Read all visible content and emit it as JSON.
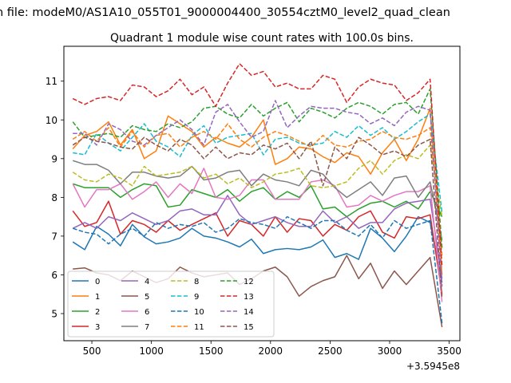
{
  "figure": {
    "suptitle": "n file: modeM0/AS1A10_055T01_9000004400_30554cztM0_level2_quad_clean",
    "title": "Quadrant 1 module wise count rates with 100.0s bins.",
    "offset_label": "+3.5945e8"
  },
  "chart_data": {
    "type": "line",
    "title": "Quadrant 1 module wise count rates with 100.0s bins.",
    "xlabel": "",
    "ylabel": "",
    "x_offset": 359450000,
    "xlim": [
      265,
      3590
    ],
    "ylim": [
      4.3,
      11.9
    ],
    "xticks": [
      500,
      1000,
      1500,
      2000,
      2500,
      3000,
      3500
    ],
    "xtick_labels": [
      "500",
      "1000",
      "1500",
      "2000",
      "2500",
      "3000",
      "3500"
    ],
    "yticks": [
      5,
      6,
      7,
      8,
      9,
      10,
      11
    ],
    "ytick_labels": [
      "5",
      "6",
      "7",
      "8",
      "9",
      "10",
      "11"
    ],
    "grid": false,
    "legend_position": "lower-left",
    "legend_columns": 4,
    "x": [
      340,
      440,
      540,
      640,
      740,
      840,
      940,
      1040,
      1140,
      1240,
      1340,
      1440,
      1540,
      1640,
      1740,
      1840,
      1940,
      2040,
      2140,
      2240,
      2340,
      2440,
      2540,
      2640,
      2740,
      2840,
      2940,
      3040,
      3140,
      3240,
      3340,
      3440
    ],
    "series": [
      {
        "name": "0",
        "color": "#1f77b4",
        "dash": "solid",
        "values": [
          6.85,
          6.65,
          7.25,
          7.05,
          6.75,
          7.3,
          6.98,
          6.8,
          6.85,
          6.95,
          7.2,
          7.0,
          6.95,
          6.85,
          6.72,
          6.92,
          6.55,
          6.65,
          6.68,
          6.65,
          6.72,
          6.9,
          6.45,
          6.55,
          6.4,
          7.2,
          6.95,
          6.6,
          7.0,
          7.5,
          7.35,
          5.8
        ]
      },
      {
        "name": "1",
        "color": "#ff7f0e",
        "dash": "solid",
        "values": [
          9.25,
          9.6,
          9.7,
          9.95,
          9.35,
          9.75,
          9.0,
          9.2,
          10.1,
          9.9,
          9.7,
          9.3,
          9.55,
          9.4,
          9.3,
          9.55,
          10.0,
          8.85,
          9.0,
          9.3,
          9.25,
          9.05,
          8.9,
          9.15,
          9.05,
          8.6,
          9.15,
          9.5,
          8.95,
          9.5,
          10.3,
          6.0
        ]
      },
      {
        "name": "2",
        "color": "#2ca02c",
        "dash": "solid",
        "values": [
          8.35,
          8.25,
          8.25,
          8.25,
          8.0,
          8.2,
          8.35,
          8.3,
          7.75,
          7.8,
          8.2,
          8.1,
          8.0,
          8.2,
          7.9,
          8.15,
          8.25,
          7.95,
          8.15,
          8.0,
          8.3,
          7.7,
          7.75,
          7.5,
          7.7,
          7.85,
          7.9,
          7.75,
          7.9,
          7.7,
          8.15,
          7.5
        ]
      },
      {
        "name": "3",
        "color": "#d62728",
        "dash": "solid",
        "values": [
          7.65,
          7.25,
          7.35,
          7.9,
          7.05,
          7.4,
          7.3,
          7.1,
          7.4,
          7.15,
          7.3,
          7.45,
          7.6,
          7.0,
          7.4,
          7.3,
          7.0,
          7.5,
          7.1,
          7.45,
          7.4,
          7.0,
          7.3,
          7.15,
          7.5,
          7.65,
          7.1,
          6.95,
          7.5,
          7.45,
          7.55,
          5.5
        ]
      },
      {
        "name": "4",
        "color": "#9467bd",
        "dash": "solid",
        "values": [
          7.2,
          7.35,
          7.2,
          7.5,
          7.4,
          7.6,
          7.45,
          7.3,
          7.4,
          7.65,
          7.7,
          7.55,
          7.55,
          8.05,
          7.55,
          7.3,
          7.4,
          7.5,
          7.35,
          7.25,
          7.25,
          7.65,
          7.35,
          7.5,
          7.2,
          7.35,
          7.35,
          7.7,
          7.85,
          7.9,
          7.95,
          5.9
        ]
      },
      {
        "name": "5",
        "color": "#8c564b",
        "dash": "solid",
        "values": [
          6.15,
          6.18,
          6.05,
          6.0,
          5.85,
          6.1,
          5.95,
          5.8,
          5.9,
          6.2,
          6.05,
          5.95,
          6.0,
          6.05,
          5.75,
          5.9,
          6.1,
          6.2,
          5.95,
          5.45,
          5.7,
          5.85,
          5.95,
          6.5,
          5.9,
          6.3,
          5.65,
          6.1,
          5.75,
          6.1,
          6.45,
          4.65
        ]
      },
      {
        "name": "6",
        "color": "#e377c2",
        "dash": "solid",
        "values": [
          8.35,
          7.75,
          8.2,
          8.2,
          8.35,
          7.95,
          8.15,
          8.4,
          8.0,
          8.35,
          8.1,
          8.75,
          8.0,
          7.95,
          8.05,
          8.45,
          8.45,
          7.95,
          7.95,
          7.95,
          8.4,
          8.45,
          8.3,
          7.75,
          7.8,
          8.05,
          7.9,
          8.05,
          8.15,
          8.15,
          8.3,
          5.3
        ]
      },
      {
        "name": "7",
        "color": "#7f7f7f",
        "dash": "solid",
        "values": [
          8.95,
          8.85,
          8.85,
          8.7,
          8.35,
          8.65,
          8.65,
          8.55,
          8.5,
          8.55,
          8.8,
          8.45,
          8.5,
          8.65,
          8.7,
          8.3,
          8.6,
          8.45,
          8.4,
          8.3,
          8.7,
          8.6,
          8.25,
          8.0,
          8.2,
          8.4,
          8.05,
          8.5,
          8.55,
          8.0,
          8.4,
          6.9
        ]
      },
      {
        "name": "8",
        "color": "#bcbd22",
        "dash": "dashed",
        "values": [
          8.65,
          8.45,
          8.4,
          8.6,
          8.5,
          8.3,
          8.8,
          8.55,
          8.6,
          8.65,
          8.8,
          8.5,
          8.6,
          8.35,
          8.5,
          8.25,
          8.4,
          8.6,
          8.65,
          8.75,
          8.3,
          8.25,
          8.3,
          8.4,
          8.75,
          8.95,
          8.6,
          8.95,
          9.1,
          9.0,
          9.35,
          7.5
        ]
      },
      {
        "name": "9",
        "color": "#17becf",
        "dash": "dashed",
        "values": [
          9.15,
          9.1,
          9.65,
          9.4,
          9.2,
          9.55,
          9.9,
          9.45,
          9.3,
          9.05,
          9.6,
          9.85,
          9.4,
          9.55,
          9.6,
          9.65,
          9.1,
          9.5,
          9.55,
          9.4,
          9.35,
          9.4,
          9.7,
          9.55,
          9.85,
          9.6,
          9.8,
          9.5,
          9.7,
          9.95,
          10.15,
          7.6
        ]
      },
      {
        "name": "10",
        "color": "#1f77b4",
        "dash": "dashed",
        "values": [
          7.2,
          7.1,
          7.05,
          6.8,
          7.05,
          7.2,
          7.0,
          7.35,
          7.2,
          7.3,
          7.25,
          7.35,
          7.1,
          7.2,
          7.45,
          7.35,
          7.3,
          7.2,
          7.5,
          7.35,
          7.2,
          7.4,
          7.4,
          7.15,
          7.0,
          7.3,
          6.95,
          7.4,
          7.2,
          7.3,
          7.4,
          4.75
        ]
      },
      {
        "name": "11",
        "color": "#ff7f0e",
        "dash": "dashed",
        "values": [
          9.5,
          9.7,
          9.45,
          9.8,
          9.3,
          9.7,
          9.3,
          9.6,
          9.65,
          9.3,
          9.55,
          9.7,
          9.5,
          9.9,
          9.5,
          9.3,
          9.55,
          9.7,
          9.6,
          9.45,
          9.3,
          9.6,
          9.35,
          9.3,
          9.45,
          9.5,
          9.7,
          9.55,
          9.5,
          9.6,
          9.8,
          6.5
        ]
      },
      {
        "name": "12",
        "color": "#2ca02c",
        "dash": "dashed",
        "values": [
          9.95,
          9.55,
          9.6,
          9.65,
          9.55,
          9.85,
          9.75,
          9.7,
          9.9,
          9.8,
          9.95,
          10.3,
          10.35,
          10.15,
          10.05,
          10.4,
          10.1,
          10.3,
          10.45,
          9.95,
          10.3,
          10.2,
          10.05,
          10.3,
          10.45,
          10.35,
          10.15,
          10.4,
          10.45,
          10.15,
          10.8,
          6.7
        ]
      },
      {
        "name": "13",
        "color": "#d62728",
        "dash": "dashed",
        "values": [
          10.55,
          10.4,
          10.55,
          10.6,
          10.5,
          10.9,
          10.85,
          10.6,
          10.75,
          11.05,
          10.65,
          10.85,
          10.35,
          10.95,
          11.45,
          11.15,
          11.25,
          10.85,
          10.95,
          10.8,
          10.8,
          11.15,
          11.05,
          10.45,
          10.85,
          11.05,
          10.95,
          10.9,
          10.5,
          10.7,
          11.05,
          6.2
        ]
      },
      {
        "name": "14",
        "color": "#9467bd",
        "dash": "dashed",
        "values": [
          9.65,
          9.65,
          9.35,
          9.9,
          9.75,
          9.45,
          9.35,
          9.6,
          9.8,
          10.0,
          9.75,
          9.35,
          10.2,
          10.4,
          9.95,
          9.55,
          9.7,
          10.5,
          9.8,
          10.1,
          10.35,
          10.3,
          10.3,
          10.2,
          10.15,
          9.9,
          10.05,
          9.85,
          10.2,
          10.35,
          10.25,
          5.7
        ]
      },
      {
        "name": "15",
        "color": "#8c564b",
        "dash": "dashed",
        "values": [
          9.35,
          9.55,
          9.45,
          9.4,
          9.3,
          9.25,
          9.55,
          9.35,
          9.2,
          9.5,
          9.35,
          9.0,
          9.3,
          9.0,
          9.15,
          9.1,
          9.35,
          9.25,
          9.4,
          9.0,
          9.45,
          8.3,
          9.3,
          9.0,
          9.55,
          9.35,
          9.1,
          9.2,
          9.05,
          9.35,
          9.5,
          5.4
        ]
      }
    ]
  }
}
